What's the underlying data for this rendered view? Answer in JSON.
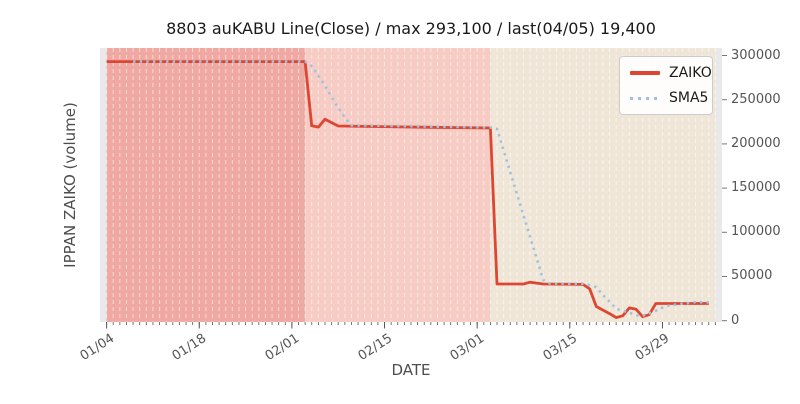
{
  "chart_data": {
    "type": "line",
    "title": "8803 auKABU Line(Close) / max 293,100 / last(04/05) 19,400",
    "xlabel": "DATE",
    "ylabel": "IPPAN ZAIKO (volume)",
    "legend_position": "upper right",
    "grid": "vertical-daily-white-dashed",
    "plot_bg_color": "#e9e9ec",
    "xaxis": {
      "min_date": "01/03",
      "max_date": "04/07",
      "tick_labels": [
        "01/04",
        "01/18",
        "02/01",
        "02/15",
        "03/01",
        "03/15",
        "03/29"
      ],
      "minor_tick_interval_days": 1
    },
    "yaxis": {
      "min": -1500,
      "max": 308500,
      "tick_labels": [
        "0",
        "50000",
        "100000",
        "150000",
        "200000",
        "250000",
        "300000"
      ],
      "tick_values": [
        0,
        50000,
        100000,
        150000,
        200000,
        250000,
        300000
      ]
    },
    "spans": [
      {
        "from": "01/04",
        "to": "02/03",
        "color": "#f0a9a2"
      },
      {
        "from": "02/03",
        "to": "03/03",
        "color": "#f6ccc5"
      },
      {
        "from": "03/03",
        "to": "04/06",
        "color": "#f0e6d8"
      }
    ],
    "series": [
      {
        "name": "ZAIKO",
        "style": "solid",
        "color": "#dd4633",
        "points": [
          [
            "01/04",
            293100
          ],
          [
            "02/03",
            293100
          ],
          [
            "02/04",
            220500
          ],
          [
            "02/05",
            219000
          ],
          [
            "02/06",
            228000
          ],
          [
            "02/08",
            220300
          ],
          [
            "02/22",
            218800
          ],
          [
            "03/03",
            218000
          ],
          [
            "03/04",
            41500
          ],
          [
            "03/08",
            41500
          ],
          [
            "03/09",
            43500
          ],
          [
            "03/11",
            41500
          ],
          [
            "03/17",
            41000
          ],
          [
            "03/18",
            36000
          ],
          [
            "03/19",
            16000
          ],
          [
            "03/21",
            8000
          ],
          [
            "03/22",
            3500
          ],
          [
            "03/23",
            5500
          ],
          [
            "03/24",
            14500
          ],
          [
            "03/25",
            13000
          ],
          [
            "03/26",
            4500
          ],
          [
            "03/27",
            6800
          ],
          [
            "03/28",
            19400
          ],
          [
            "04/05",
            19400
          ]
        ]
      },
      {
        "name": "SMA5",
        "style": "dotted",
        "color": "#9fc2e0",
        "points": [
          [
            "01/08",
            293100
          ],
          [
            "02/03",
            293100
          ],
          [
            "02/04",
            288000
          ],
          [
            "02/05",
            277000
          ],
          [
            "02/06",
            266000
          ],
          [
            "02/07",
            253000
          ],
          [
            "02/08",
            241000
          ],
          [
            "02/09",
            230000
          ],
          [
            "02/10",
            221000
          ],
          [
            "02/12",
            220800
          ],
          [
            "03/03",
            218500
          ],
          [
            "03/04",
            217000
          ],
          [
            "03/11",
            46000
          ],
          [
            "03/12",
            42000
          ],
          [
            "03/17",
            41800
          ],
          [
            "03/18",
            40000
          ],
          [
            "03/19",
            38000
          ],
          [
            "03/20",
            29000
          ],
          [
            "03/21",
            21500
          ],
          [
            "03/22",
            13500
          ],
          [
            "03/24",
            9000
          ],
          [
            "03/25",
            5800
          ],
          [
            "03/26",
            5600
          ],
          [
            "03/27",
            8000
          ],
          [
            "03/28",
            11300
          ],
          [
            "03/29",
            14700
          ],
          [
            "03/30",
            17000
          ],
          [
            "04/01",
            19200
          ],
          [
            "04/03",
            21000
          ],
          [
            "04/05",
            20800
          ]
        ]
      }
    ],
    "annotations": {
      "max_value": "293,100",
      "last_date": "04/05",
      "last_value": "19,400",
      "symbol": "8803"
    }
  }
}
